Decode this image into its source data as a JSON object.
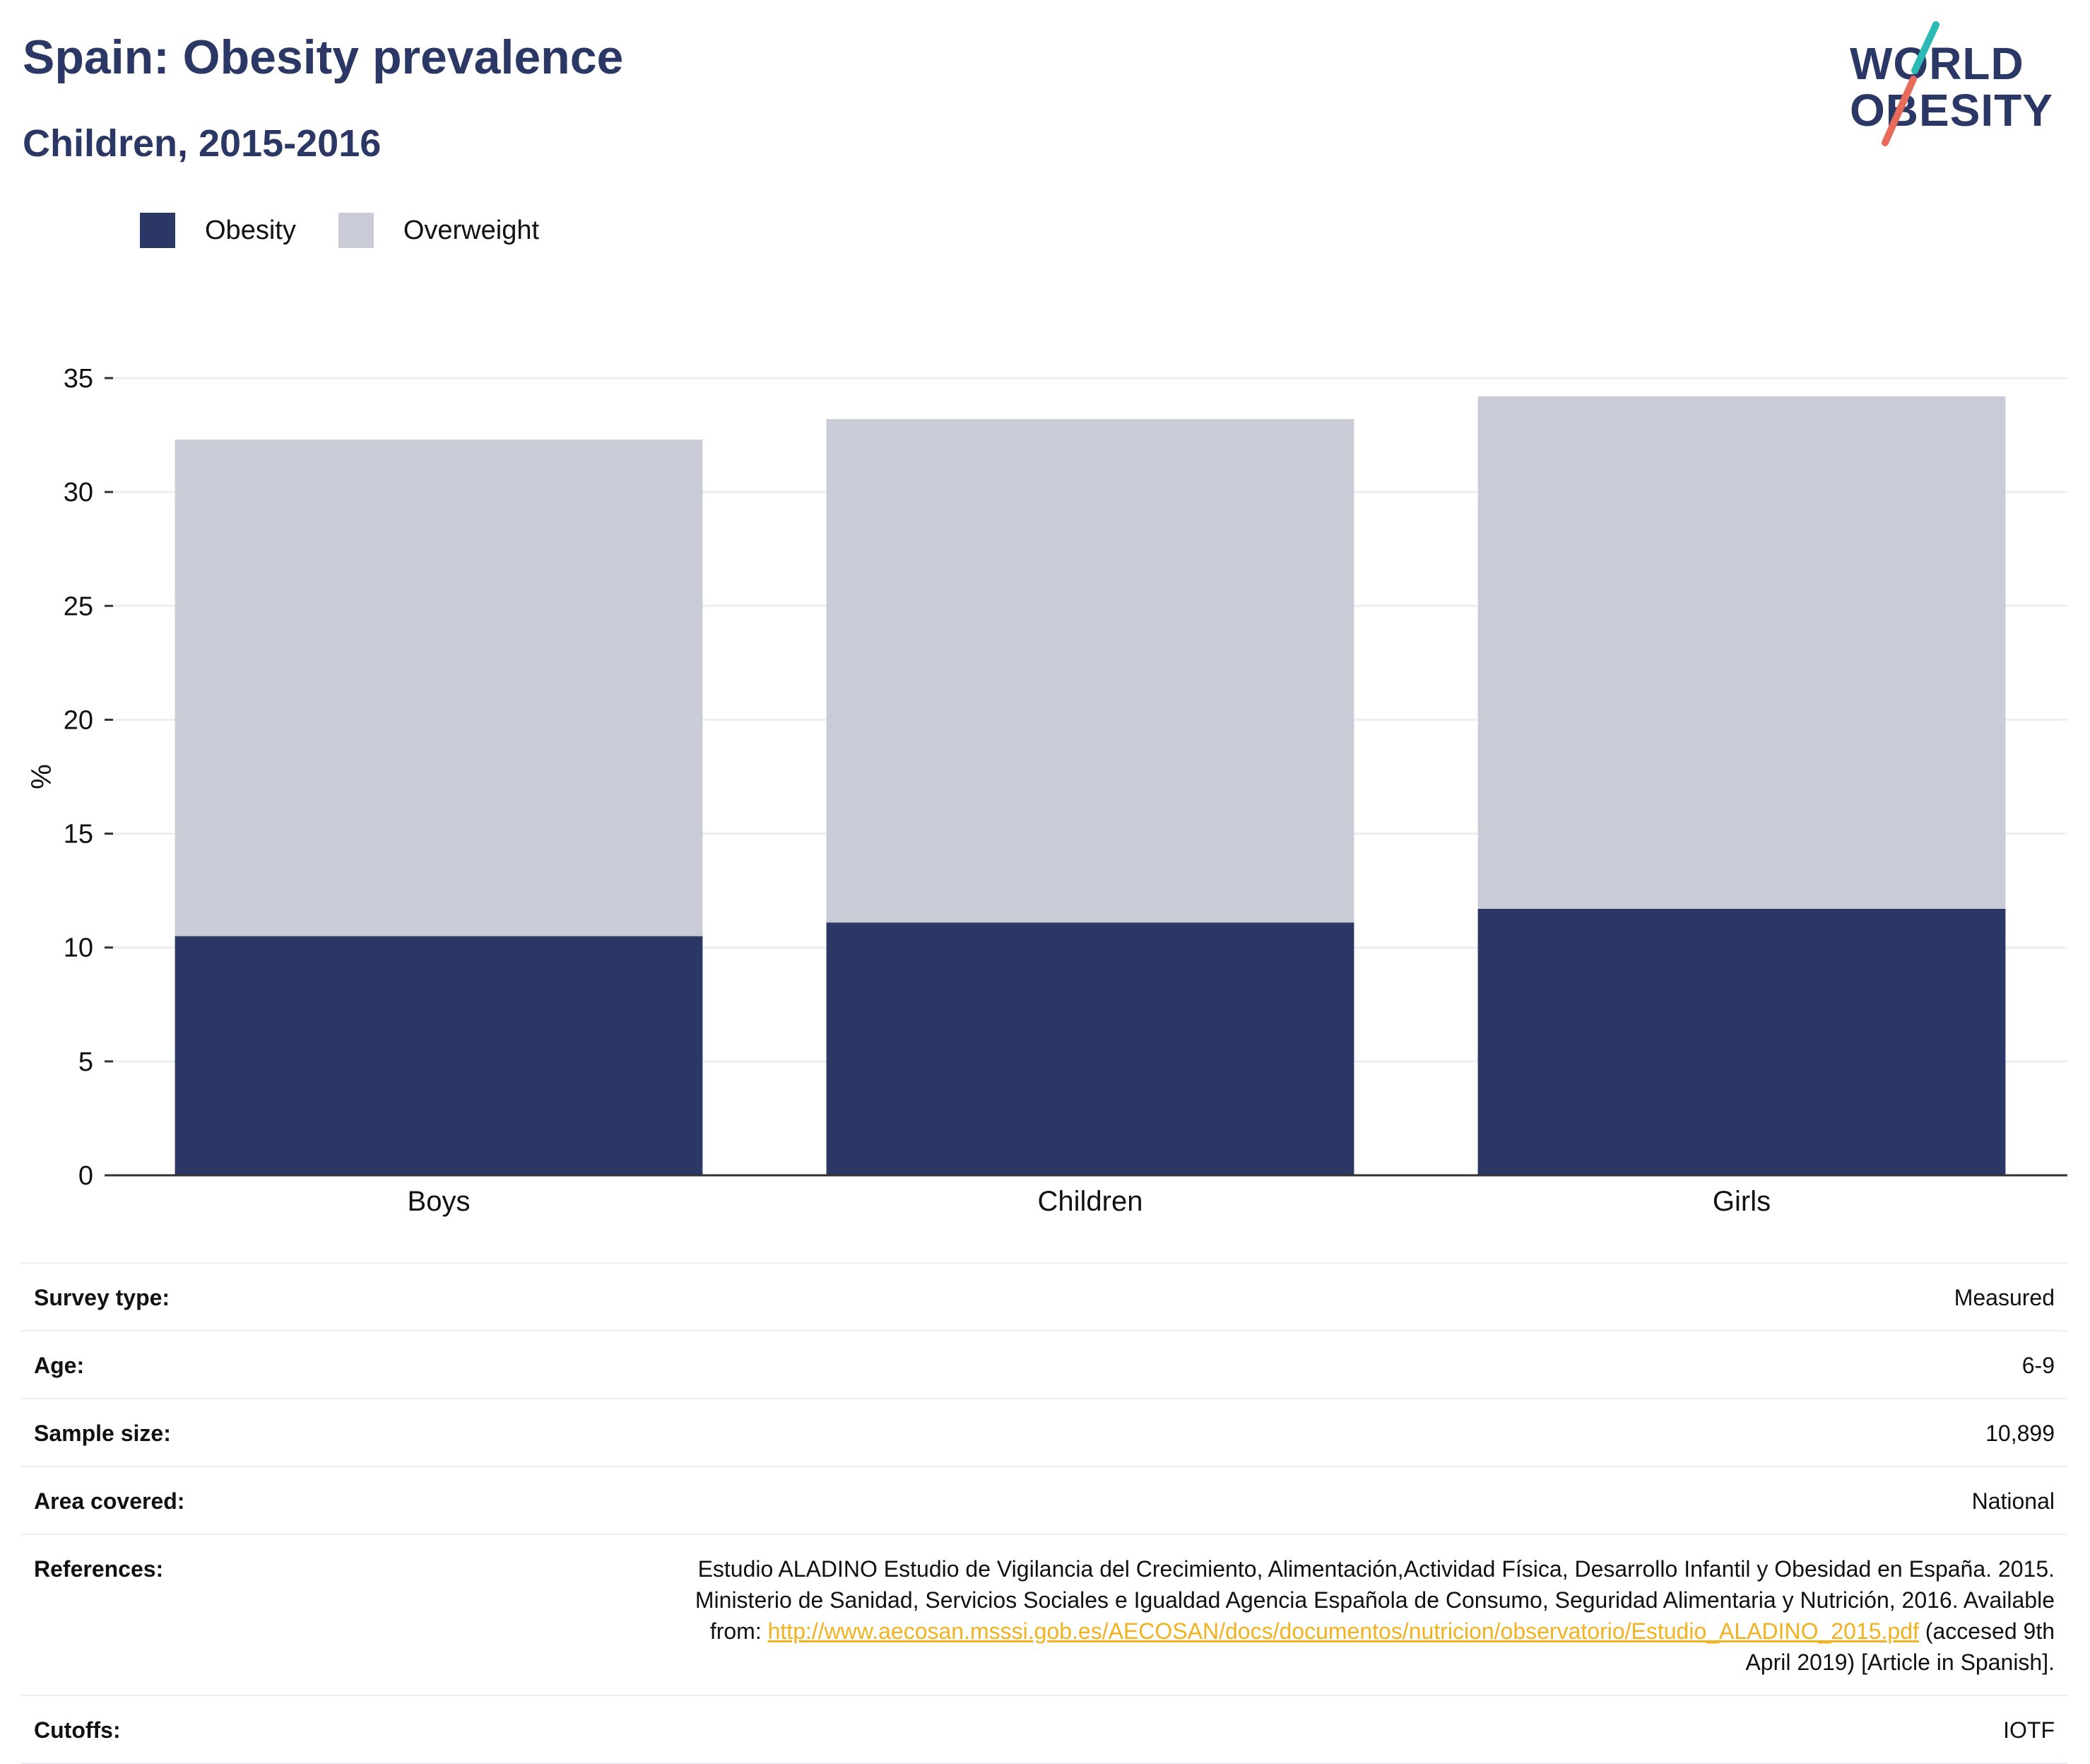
{
  "header": {
    "title": "Spain: Obesity prevalence",
    "subtitle": "Children, 2015-2016"
  },
  "logo": {
    "line1": "WORLD",
    "line2": "OBESITY"
  },
  "colors": {
    "obesity": "#2b3764",
    "overweight": "#c9cbd7",
    "logo_teal": "#2bb9b5",
    "logo_coral": "#e86a5a",
    "link": "#f2b21f"
  },
  "chart_data": {
    "type": "bar",
    "stacked": true,
    "categories": [
      "Boys",
      "Children",
      "Girls"
    ],
    "series": [
      {
        "name": "Obesity",
        "values": [
          10.5,
          11.1,
          11.7
        ]
      },
      {
        "name": "Overweight",
        "values": [
          21.8,
          22.1,
          22.5
        ]
      }
    ],
    "ylabel": "%",
    "ylim": [
      0,
      35
    ],
    "yticks": [
      0,
      5,
      10,
      15,
      20,
      25,
      30,
      35
    ],
    "grid": true,
    "legend": "top-left"
  },
  "info": {
    "survey_type": {
      "label": "Survey type:",
      "value": "Measured"
    },
    "age": {
      "label": "Age:",
      "value": "6-9"
    },
    "sample_size": {
      "label": "Sample size:",
      "value": "10,899"
    },
    "area": {
      "label": "Area covered:",
      "value": "National"
    },
    "references": {
      "label": "References:",
      "line1": "Estudio ALADINO Estudio de Vigilancia del Crecimiento, Alimentación,Actividad Física, Desarrollo Infantil y Obesidad en España. 2015.",
      "line2": "Ministerio de Sanidad, Servicios Sociales e Igualdad Agencia Española de Consumo, Seguridad Alimentaria y Nutrición, 2016. Available",
      "from": "from: ",
      "link": "http://www.aecosan.msssi.gob.es/AECOSAN/docs/documentos/nutricion/observatorio/Estudio_ALADINO_2015.pdf",
      "after": " (accesed 9th",
      "line4": "April 2019) [Article in Spanish]."
    },
    "cutoffs": {
      "label": "Cutoffs:",
      "value": "IOTF"
    }
  }
}
